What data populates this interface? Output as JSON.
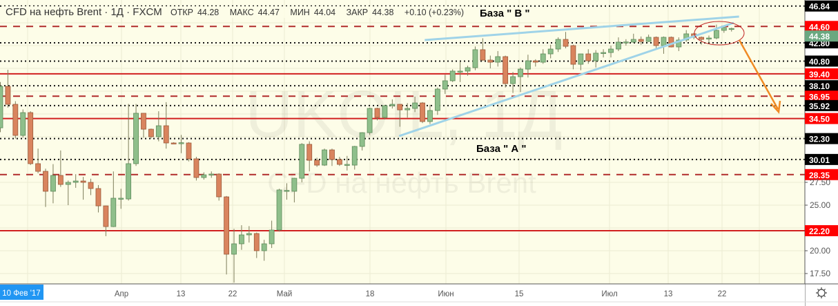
{
  "header": {
    "title": "CFD на нефть Brent · 1Д · FXCM",
    "open_label": "ОТКР",
    "open": "44.28",
    "high_label": "МАКС",
    "high": "44.47",
    "low_label": "МИН",
    "low": "44.04",
    "close_label": "ЗАКР",
    "close": "44.38",
    "change": "+0.10 (+0.23%)"
  },
  "watermark": {
    "symbol": "UKOIL, 1Д",
    "name": "CFD на нефть Brent"
  },
  "annotations": {
    "base_b": "База \" В \"",
    "base_a": "База \" А \""
  },
  "colors": {
    "background": "#fdfde8",
    "up": "#8fbf8b",
    "down": "#d9845e",
    "level_red": "#d11f1f",
    "trendline": "#9fd3e8",
    "arrow": "#f08a24",
    "ellipse": "#c02020",
    "time_badge": "#2196f3",
    "current_badge": "#6aa880"
  },
  "chart_data": {
    "type": "candlestick",
    "symbol": "CFD на нефть Brent",
    "timeframe": "1Д",
    "ylim": [
      16.5,
      47.3
    ],
    "grid": true,
    "ohlc": [
      [
        33.48,
        38.5,
        33.0,
        38.03
      ],
      [
        38.03,
        39.85,
        35.7,
        36.06
      ],
      [
        36.06,
        36.4,
        32.3,
        32.65
      ],
      [
        32.65,
        35.5,
        32.4,
        35.15
      ],
      [
        35.15,
        35.3,
        29.4,
        29.55
      ],
      [
        29.55,
        31.2,
        28.5,
        28.71
      ],
      [
        28.71,
        29.0,
        24.8,
        26.52
      ],
      [
        26.52,
        29.5,
        25.2,
        28.26
      ],
      [
        28.26,
        31.0,
        27.0,
        27.27
      ],
      [
        27.27,
        27.7,
        25.0,
        27.5
      ],
      [
        27.5,
        28.4,
        26.9,
        27.65
      ],
      [
        27.65,
        28.1,
        25.6,
        27.5
      ],
      [
        27.5,
        27.9,
        26.1,
        26.82
      ],
      [
        26.82,
        27.2,
        24.2,
        24.92
      ],
      [
        24.92,
        24.95,
        21.6,
        22.65
      ],
      [
        22.65,
        28.7,
        22.6,
        25.76
      ],
      [
        25.7,
        26.8,
        24.6,
        25.76
      ],
      [
        25.68,
        36.1,
        25.5,
        29.55
      ],
      [
        29.55,
        36.1,
        29.3,
        35.08
      ],
      [
        35.08,
        35.1,
        32.4,
        33.33
      ],
      [
        33.33,
        33.4,
        32.3,
        32.5
      ],
      [
        32.5,
        35.3,
        32.0,
        33.71
      ],
      [
        33.71,
        36.3,
        31.2,
        31.82
      ],
      [
        31.82,
        31.9,
        31.7,
        31.8
      ],
      [
        31.82,
        32.7,
        30.7,
        31.85
      ],
      [
        31.82,
        31.9,
        29.8,
        30.08
      ],
      [
        30.08,
        30.3,
        27.7,
        28.03
      ],
      [
        28.03,
        28.6,
        27.8,
        28.33
      ],
      [
        28.33,
        28.7,
        28.0,
        28.41
      ],
      [
        28.41,
        28.5,
        25.5,
        25.91
      ],
      [
        25.91,
        26.0,
        17.4,
        19.62
      ],
      [
        19.62,
        22.4,
        16.5,
        20.76
      ],
      [
        20.76,
        22.8,
        20.1,
        21.74
      ],
      [
        21.74,
        22.7,
        20.9,
        21.89
      ],
      [
        21.89,
        22.0,
        19.2,
        20.0
      ],
      [
        20.0,
        21.2,
        18.9,
        20.76
      ],
      [
        20.76,
        23.3,
        20.3,
        22.27
      ],
      [
        22.27,
        26.8,
        22.1,
        26.67
      ],
      [
        26.59,
        27.4,
        25.6,
        26.62
      ],
      [
        26.52,
        28.0,
        25.3,
        27.95
      ],
      [
        27.95,
        31.8,
        27.5,
        31.67
      ],
      [
        31.67,
        32.0,
        28.7,
        29.92
      ],
      [
        29.92,
        30.2,
        29.2,
        29.39
      ],
      [
        29.39,
        31.2,
        29.3,
        31.06
      ],
      [
        31.06,
        31.2,
        29.3,
        30.0
      ],
      [
        30.0,
        30.3,
        29.3,
        29.47
      ],
      [
        29.39,
        30.4,
        28.8,
        29.47
      ],
      [
        29.39,
        31.5,
        28.9,
        31.44
      ],
      [
        31.44,
        33.0,
        31.0,
        32.95
      ],
      [
        32.95,
        35.7,
        32.7,
        35.61
      ],
      [
        35.61,
        35.7,
        34.3,
        34.62
      ],
      [
        34.62,
        36.0,
        34.4,
        35.91
      ],
      [
        35.91,
        36.6,
        35.6,
        36.06
      ],
      [
        36.06,
        36.1,
        33.6,
        35.45
      ],
      [
        35.45,
        36.2,
        34.6,
        35.61
      ],
      [
        35.61,
        36.9,
        35.2,
        36.21
      ],
      [
        36.21,
        36.3,
        34.0,
        34.17
      ],
      [
        34.17,
        36.0,
        33.9,
        35.38
      ],
      [
        35.38,
        37.9,
        34.9,
        37.73
      ],
      [
        37.73,
        39.3,
        37.2,
        38.64
      ],
      [
        38.64,
        39.9,
        38.5,
        39.7
      ],
      [
        39.62,
        40.7,
        38.5,
        39.7
      ],
      [
        39.7,
        40.3,
        39.2,
        40.08
      ],
      [
        40.08,
        42.4,
        39.8,
        42.05
      ],
      [
        42.05,
        43.3,
        40.8,
        40.91
      ],
      [
        40.91,
        41.4,
        40.0,
        40.68
      ],
      [
        40.68,
        41.9,
        40.2,
        41.29
      ],
      [
        41.29,
        41.4,
        37.9,
        38.33
      ],
      [
        38.33,
        39.6,
        37.3,
        39.09
      ],
      [
        39.09,
        40.1,
        37.4,
        39.92
      ],
      [
        39.92,
        41.5,
        39.0,
        40.83
      ],
      [
        40.83,
        41.0,
        40.2,
        40.68
      ],
      [
        40.68,
        42.1,
        40.5,
        41.59
      ],
      [
        41.59,
        42.6,
        41.1,
        42.12
      ],
      [
        42.12,
        43.4,
        41.8,
        43.18
      ],
      [
        43.18,
        44.0,
        42.2,
        42.42
      ],
      [
        42.5,
        42.6,
        39.9,
        40.45
      ],
      [
        40.45,
        41.6,
        39.8,
        41.59
      ],
      [
        41.59,
        42.1,
        40.5,
        40.83
      ],
      [
        40.83,
        42.0,
        40.1,
        41.67
      ],
      [
        41.7,
        42.1,
        41.2,
        41.74
      ],
      [
        41.74,
        42.5,
        41.2,
        42.12
      ],
      [
        42.12,
        43.4,
        41.9,
        42.88
      ],
      [
        42.88,
        43.2,
        42.5,
        42.9
      ],
      [
        42.88,
        43.8,
        42.8,
        43.18
      ],
      [
        43.18,
        43.5,
        42.6,
        42.95
      ],
      [
        42.95,
        43.7,
        42.9,
        43.41
      ],
      [
        43.41,
        43.5,
        42.1,
        42.5
      ],
      [
        42.5,
        43.5,
        41.6,
        43.41
      ],
      [
        43.41,
        43.5,
        42.3,
        42.35
      ],
      [
        42.35,
        43.4,
        41.9,
        43.11
      ],
      [
        43.11,
        44.2,
        42.9,
        43.79
      ],
      [
        43.79,
        43.9,
        43.2,
        43.41
      ],
      [
        43.41,
        43.5,
        42.6,
        43.18
      ],
      [
        43.3,
        43.6,
        42.8,
        43.33
      ],
      [
        43.33,
        44.8,
        43.2,
        44.17
      ],
      [
        44.17,
        44.7,
        43.9,
        44.47
      ],
      [
        44.28,
        44.47,
        44.04,
        44.38
      ]
    ],
    "levels": [
      {
        "price": 46.84,
        "style": "dotted",
        "label": "46.84"
      },
      {
        "price": 44.6,
        "style": "dashed",
        "label": "44.60"
      },
      {
        "price": 42.8,
        "style": "dotted",
        "label": "42.80"
      },
      {
        "price": 40.8,
        "style": "dotted",
        "label": "40.80"
      },
      {
        "price": 39.4,
        "style": "solid",
        "label": "39.40"
      },
      {
        "price": 38.1,
        "style": "dotted",
        "label": "38.10"
      },
      {
        "price": 36.95,
        "style": "dashed",
        "label": "36.95"
      },
      {
        "price": 35.92,
        "style": "dotted",
        "label": "35.92"
      },
      {
        "price": 34.5,
        "style": "solid",
        "label": "34.50"
      },
      {
        "price": 32.3,
        "style": "dotted",
        "label": "32.30"
      },
      {
        "price": 30.01,
        "style": "dotted",
        "label": "30.01"
      },
      {
        "price": 28.35,
        "style": "dashed",
        "label": "28.35"
      },
      {
        "price": 22.2,
        "style": "solid",
        "label": "22.20"
      }
    ],
    "current_price": "44.38",
    "price_ticks": [
      "27.50",
      "25.00",
      "20.00",
      "17.50"
    ],
    "price_tick_values": [
      27.5,
      25.0,
      20.0,
      17.5
    ],
    "time_badge": "10 Фев '17",
    "time_ticks": [
      "Апр",
      "13",
      "22",
      "Май",
      "18",
      "Июн",
      "15",
      "Июл",
      "13",
      "22"
    ],
    "trendlines": [
      {
        "from": [
          56.3,
          43.11
        ],
        "to": [
          98.0,
          45.68
        ]
      },
      {
        "from": [
          52.9,
          32.58
        ],
        "to": [
          97.3,
          45.0
        ]
      }
    ]
  }
}
